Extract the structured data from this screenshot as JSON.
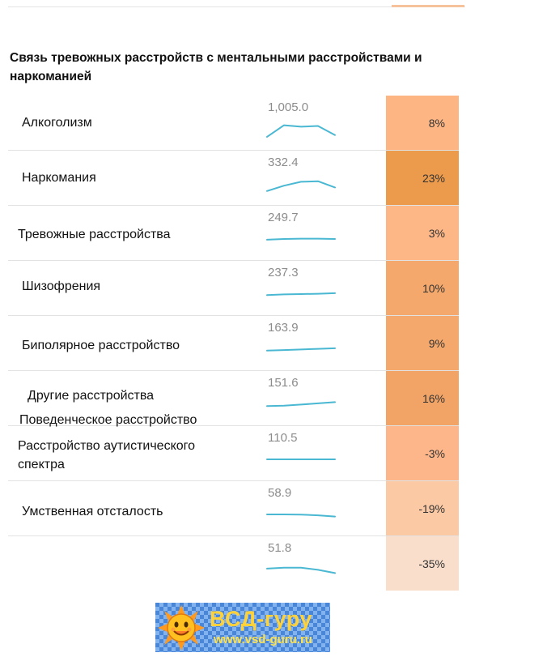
{
  "title": "Связь тревожных расстройств с ментальными расстройствами и наркоманией",
  "rows": [
    {
      "label": "Алкоголизм",
      "value": "1,005.0",
      "percent": "8%",
      "cell_color": "#fdb584"
    },
    {
      "label": "Наркомания",
      "value": "332.4",
      "percent": "23%",
      "cell_color": "#ec9a4b"
    },
    {
      "label": "Тревожные расстройства",
      "value": "249.7",
      "percent": "3%",
      "cell_color": "#fdb686"
    },
    {
      "label": "Шизофрения",
      "value": "237.3",
      "percent": "10%",
      "cell_color": "#f5a86b"
    },
    {
      "label": "Биполярное расстройство",
      "value": "163.9",
      "percent": "9%",
      "cell_color": "#f5a86b"
    },
    {
      "label": "Другие расстройства",
      "label2": "Поведенческое расстройство",
      "value": "151.6",
      "percent": "16%",
      "cell_color": "#f2a466"
    },
    {
      "label": "Расстройство аутистического",
      "label2": "спектра",
      "value": "110.5",
      "percent": "-3%",
      "cell_color": "#fdb689"
    },
    {
      "label": "Умственная отсталость",
      "value": "58.9",
      "percent": "-19%",
      "cell_color": "#fbc9a4"
    },
    {
      "label": "",
      "value": "51.8",
      "percent": "-35%",
      "cell_color": "#f8decb"
    }
  ],
  "logo": {
    "text": "ВСД-гуру",
    "url": "www.vsd-guru.ru"
  }
}
